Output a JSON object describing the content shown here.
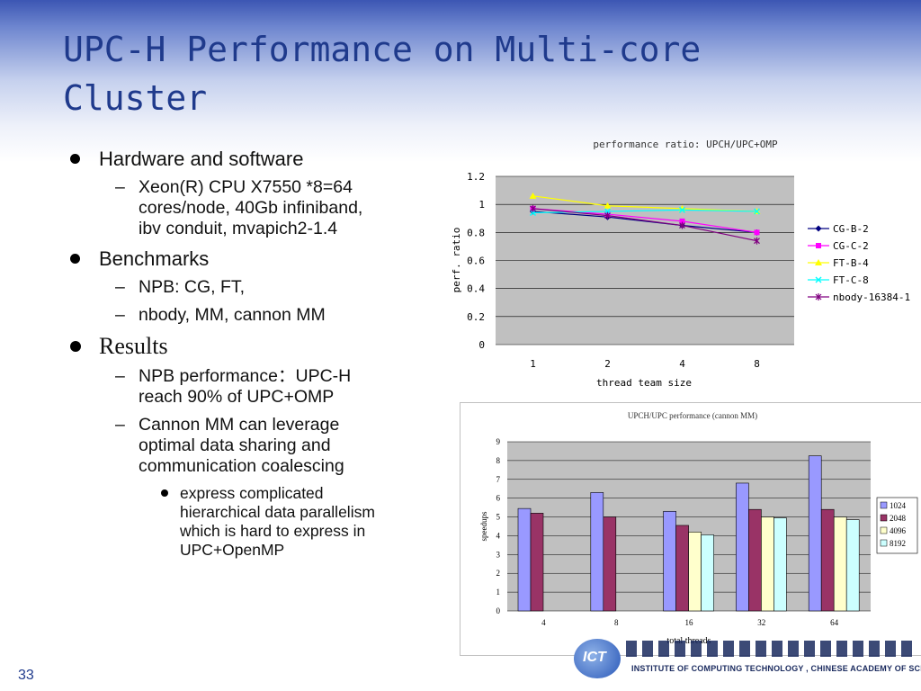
{
  "slide": {
    "title_line1": "UPC-H Performance on Multi-core",
    "title_line2": "Cluster",
    "page_number": "33"
  },
  "bullets": {
    "hardware": "Hardware and software",
    "hardware_detail_1": "Xeon(R) CPU X7550 *8=64",
    "hardware_detail_2": "cores/node, 40Gb infiniband,",
    "hardware_detail_3": "ibv conduit, mvapich2-1.4",
    "benchmarks": "Benchmarks",
    "benchmark_1": "NPB: CG, FT,",
    "benchmark_2": "nbody, MM, cannon MM",
    "results": "Results",
    "result_1_a": "NPB performance：UPC-H",
    "result_1_b": "reach 90% of UPC+OMP",
    "result_2_a": "Cannon MM can leverage",
    "result_2_b": "optimal data sharing and",
    "result_2_c": "communication coalescing",
    "sub_1": "express complicated",
    "sub_2": "hierarchical data parallelism",
    "sub_3": "which is hard to express in",
    "sub_4": "UPC+OpenMP"
  },
  "logo": {
    "mark_text": "ICT",
    "institute": "INSTITUTE OF  COMPUTING TECHNOLOGY , CHINESE ACADEMY OF SCIENCES"
  },
  "chart_data": [
    {
      "type": "line",
      "title": "performance ratio: UPCH/UPC+OMP",
      "xlabel": "thread team size",
      "ylabel": "perf. ratio",
      "categories": [
        "1",
        "2",
        "4",
        "8"
      ],
      "ylim": [
        0,
        1.2
      ],
      "yticks": [
        "0",
        "0.2",
        "0.4",
        "0.6",
        "0.8",
        "1",
        "1.2"
      ],
      "grid": true,
      "legend": "right",
      "series": [
        {
          "name": "CG-B-2",
          "values": [
            0.95,
            0.91,
            0.85,
            0.8
          ],
          "color": "#000080",
          "marker": "diamond"
        },
        {
          "name": "CG-C-2",
          "values": [
            0.97,
            0.93,
            0.88,
            0.8
          ],
          "color": "#ff00ff",
          "marker": "square"
        },
        {
          "name": "FT-B-4",
          "values": [
            1.06,
            0.99,
            0.97,
            0.95
          ],
          "color": "#ffff00",
          "marker": "triangle"
        },
        {
          "name": "FT-C-8",
          "values": [
            0.94,
            0.95,
            0.96,
            0.95
          ],
          "color": "#00ffff",
          "marker": "x"
        },
        {
          "name": "nbody-16384-1",
          "values": [
            0.97,
            0.92,
            0.85,
            0.74
          ],
          "color": "#800080",
          "marker": "star"
        }
      ]
    },
    {
      "type": "bar",
      "title": "UPCH/UPC performance (cannon MM)",
      "xlabel": "total threads",
      "ylabel": "speedups",
      "categories": [
        "4",
        "8",
        "16",
        "32",
        "64"
      ],
      "ylim": [
        0,
        9
      ],
      "yticks": [
        "0",
        "1",
        "2",
        "3",
        "4",
        "5",
        "6",
        "7",
        "8",
        "9"
      ],
      "grid": true,
      "legend": "right",
      "series": [
        {
          "name": "1024",
          "values": [
            5.45,
            6.3,
            5.3,
            6.8,
            8.25
          ],
          "color": "#9999ff"
        },
        {
          "name": "2048",
          "values": [
            5.2,
            5.0,
            4.55,
            5.4,
            5.4
          ],
          "color": "#993366"
        },
        {
          "name": "4096",
          "values": [
            null,
            null,
            4.2,
            5.0,
            5.0
          ],
          "color": "#ffffcc"
        },
        {
          "name": "8192",
          "values": [
            null,
            null,
            4.05,
            4.95,
            4.85
          ],
          "color": "#ccffff"
        }
      ]
    }
  ]
}
